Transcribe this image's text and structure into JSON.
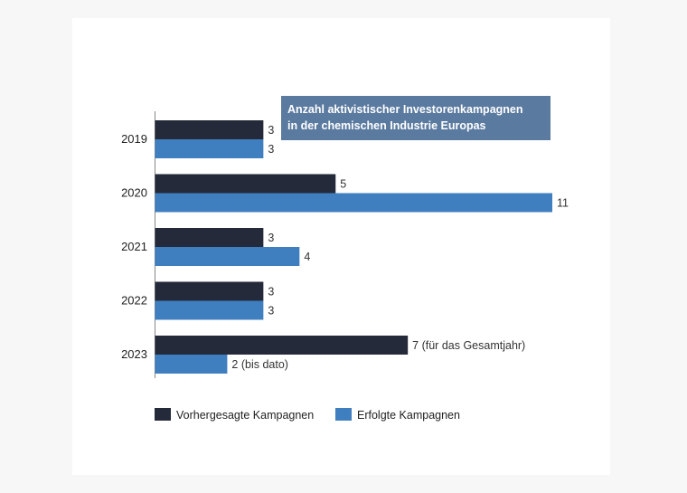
{
  "chart_data": {
    "type": "bar",
    "orientation": "horizontal",
    "title": "Anzahl aktivistischer Investorenkampagnen in der chemischen Industrie Europas",
    "title_lines": [
      "Anzahl aktivistischer Investorenkampagnen",
      "in der chemischen Industrie Europas"
    ],
    "categories": [
      "2019",
      "2020",
      "2021",
      "2022",
      "2023"
    ],
    "series": [
      {
        "name": "Vorhergesagte Kampagnen",
        "color": "#252a3a",
        "values": [
          3,
          5,
          3,
          3,
          7
        ],
        "labels": [
          "3",
          "5",
          "3",
          "3",
          "7 (für das Gesamtjahr)"
        ]
      },
      {
        "name": "Erfolgte Kampagnen",
        "color": "#3f7ebf",
        "values": [
          3,
          11,
          4,
          3,
          2
        ],
        "labels": [
          "3",
          "11",
          "4",
          "3",
          "2 (bis dato)"
        ]
      }
    ],
    "xlim": [
      0,
      11
    ],
    "grid": false,
    "legend_position": "bottom-left",
    "title_box_color": "#5a7aa0"
  }
}
